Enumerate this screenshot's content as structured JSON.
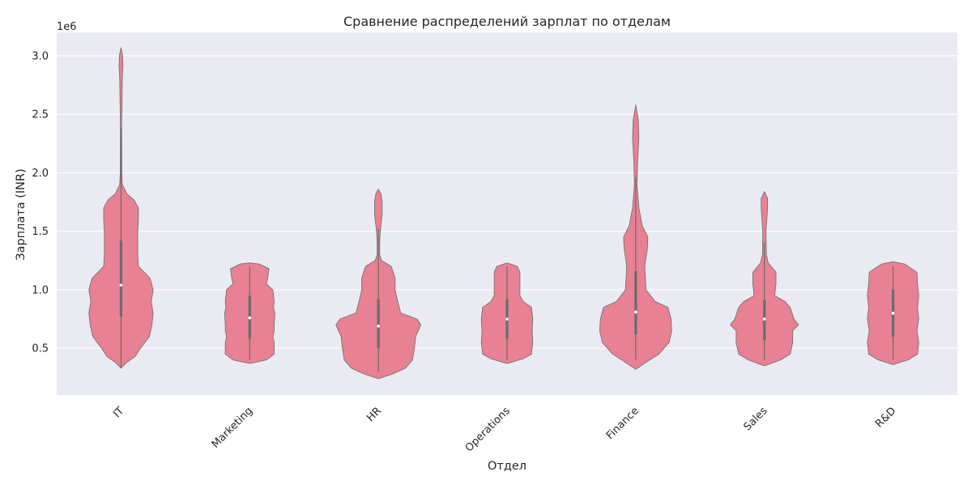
{
  "chart_data": {
    "type": "violin",
    "title": "Сравнение распределений зарплат по отделам",
    "xlabel": "Отдел",
    "ylabel": "Зарплата (INR)",
    "y_offset_label": "1e6",
    "ylim": [
      100000,
      3200000
    ],
    "y_ticks": [
      500000,
      1000000,
      1500000,
      2000000,
      2500000,
      3000000
    ],
    "y_tick_labels": [
      "0.5",
      "1.0",
      "1.5",
      "2.0",
      "2.5",
      "3.0"
    ],
    "grid": true,
    "background": "#eaeaf2",
    "violin_color": "#e88193",
    "categories": [
      "IT",
      "Marketing",
      "HR",
      "Operations",
      "Finance",
      "Sales",
      "R&D"
    ],
    "violins": [
      {
        "category": "IT",
        "min": 330000,
        "max": 3070000,
        "q1": 770000,
        "median": 1040000,
        "q3": 1420000,
        "whisker_low": 330000,
        "whisker_high": 2380000,
        "profile": [
          [
            330000,
            0
          ],
          [
            380000,
            0.09
          ],
          [
            430000,
            0.22
          ],
          [
            500000,
            0.3
          ],
          [
            600000,
            0.44
          ],
          [
            700000,
            0.48
          ],
          [
            800000,
            0.5
          ],
          [
            900000,
            0.47
          ],
          [
            1000000,
            0.5
          ],
          [
            1100000,
            0.45
          ],
          [
            1200000,
            0.27
          ],
          [
            1300000,
            0.26
          ],
          [
            1400000,
            0.26
          ],
          [
            1500000,
            0.26
          ],
          [
            1600000,
            0.27
          ],
          [
            1700000,
            0.27
          ],
          [
            1770000,
            0.2
          ],
          [
            1820000,
            0.09
          ],
          [
            1900000,
            0.02
          ],
          [
            2000000,
            0.012
          ],
          [
            2400000,
            0.01
          ],
          [
            2800000,
            0.02
          ],
          [
            2920000,
            0.03
          ],
          [
            3000000,
            0.025
          ],
          [
            3070000,
            0
          ]
        ]
      },
      {
        "category": "Marketing",
        "min": 370000,
        "max": 1230000,
        "q1": 580000,
        "median": 760000,
        "q3": 950000,
        "whisker_low": 400000,
        "whisker_high": 1200000,
        "profile": [
          [
            370000,
            0
          ],
          [
            400000,
            0.26
          ],
          [
            450000,
            0.38
          ],
          [
            550000,
            0.38
          ],
          [
            600000,
            0.36
          ],
          [
            650000,
            0.38
          ],
          [
            700000,
            0.38
          ],
          [
            800000,
            0.39
          ],
          [
            850000,
            0.37
          ],
          [
            900000,
            0.38
          ],
          [
            1000000,
            0.36
          ],
          [
            1050000,
            0.26
          ],
          [
            1100000,
            0.28
          ],
          [
            1180000,
            0.3
          ],
          [
            1220000,
            0.15
          ],
          [
            1230000,
            0
          ]
        ]
      },
      {
        "category": "HR",
        "min": 240000,
        "max": 1860000,
        "q1": 500000,
        "median": 690000,
        "q3": 920000,
        "whisker_low": 300000,
        "whisker_high": 1520000,
        "profile": [
          [
            240000,
            0
          ],
          [
            280000,
            0.22
          ],
          [
            330000,
            0.42
          ],
          [
            400000,
            0.53
          ],
          [
            500000,
            0.56
          ],
          [
            600000,
            0.58
          ],
          [
            700000,
            0.66
          ],
          [
            750000,
            0.6
          ],
          [
            800000,
            0.35
          ],
          [
            900000,
            0.3
          ],
          [
            1000000,
            0.26
          ],
          [
            1100000,
            0.26
          ],
          [
            1200000,
            0.2
          ],
          [
            1250000,
            0.05
          ],
          [
            1300000,
            0.02
          ],
          [
            1400000,
            0.02
          ],
          [
            1500000,
            0.03
          ],
          [
            1650000,
            0.06
          ],
          [
            1750000,
            0.06
          ],
          [
            1820000,
            0.04
          ],
          [
            1860000,
            0
          ]
        ]
      },
      {
        "category": "Operations",
        "min": 370000,
        "max": 1230000,
        "q1": 580000,
        "median": 750000,
        "q3": 920000,
        "whisker_low": 400000,
        "whisker_high": 1200000,
        "profile": [
          [
            370000,
            0
          ],
          [
            410000,
            0.25
          ],
          [
            450000,
            0.38
          ],
          [
            550000,
            0.4
          ],
          [
            650000,
            0.39
          ],
          [
            750000,
            0.4
          ],
          [
            850000,
            0.38
          ],
          [
            900000,
            0.25
          ],
          [
            950000,
            0.2
          ],
          [
            1050000,
            0.2
          ],
          [
            1150000,
            0.2
          ],
          [
            1200000,
            0.16
          ],
          [
            1230000,
            0
          ]
        ]
      },
      {
        "category": "Finance",
        "min": 320000,
        "max": 2580000,
        "q1": 620000,
        "median": 810000,
        "q3": 1160000,
        "whisker_low": 400000,
        "whisker_high": 1960000,
        "profile": [
          [
            320000,
            0
          ],
          [
            380000,
            0.16
          ],
          [
            450000,
            0.36
          ],
          [
            550000,
            0.52
          ],
          [
            650000,
            0.56
          ],
          [
            750000,
            0.55
          ],
          [
            850000,
            0.5
          ],
          [
            900000,
            0.3
          ],
          [
            1000000,
            0.16
          ],
          [
            1100000,
            0.15
          ],
          [
            1200000,
            0.14
          ],
          [
            1350000,
            0.18
          ],
          [
            1450000,
            0.19
          ],
          [
            1550000,
            0.1
          ],
          [
            1700000,
            0.05
          ],
          [
            1900000,
            0.02
          ],
          [
            2100000,
            0.03
          ],
          [
            2300000,
            0.05
          ],
          [
            2450000,
            0.04
          ],
          [
            2520000,
            0.02
          ],
          [
            2580000,
            0
          ]
        ]
      },
      {
        "category": "Sales",
        "min": 350000,
        "max": 1840000,
        "q1": 570000,
        "median": 750000,
        "q3": 910000,
        "whisker_low": 400000,
        "whisker_high": 1400000,
        "profile": [
          [
            350000,
            0
          ],
          [
            400000,
            0.25
          ],
          [
            450000,
            0.4
          ],
          [
            550000,
            0.44
          ],
          [
            650000,
            0.44
          ],
          [
            700000,
            0.53
          ],
          [
            750000,
            0.46
          ],
          [
            850000,
            0.4
          ],
          [
            900000,
            0.32
          ],
          [
            950000,
            0.16
          ],
          [
            1050000,
            0.18
          ],
          [
            1150000,
            0.18
          ],
          [
            1230000,
            0.06
          ],
          [
            1300000,
            0.03
          ],
          [
            1500000,
            0.025
          ],
          [
            1700000,
            0.05
          ],
          [
            1780000,
            0.05
          ],
          [
            1840000,
            0
          ]
        ]
      },
      {
        "category": "R&D",
        "min": 360000,
        "max": 1240000,
        "q1": 600000,
        "median": 800000,
        "q3": 1000000,
        "whisker_low": 400000,
        "whisker_high": 1200000,
        "profile": [
          [
            360000,
            0
          ],
          [
            400000,
            0.23
          ],
          [
            450000,
            0.38
          ],
          [
            550000,
            0.4
          ],
          [
            650000,
            0.37
          ],
          [
            750000,
            0.4
          ],
          [
            850000,
            0.38
          ],
          [
            950000,
            0.4
          ],
          [
            1050000,
            0.38
          ],
          [
            1150000,
            0.37
          ],
          [
            1220000,
            0.18
          ],
          [
            1240000,
            0
          ]
        ]
      }
    ]
  }
}
